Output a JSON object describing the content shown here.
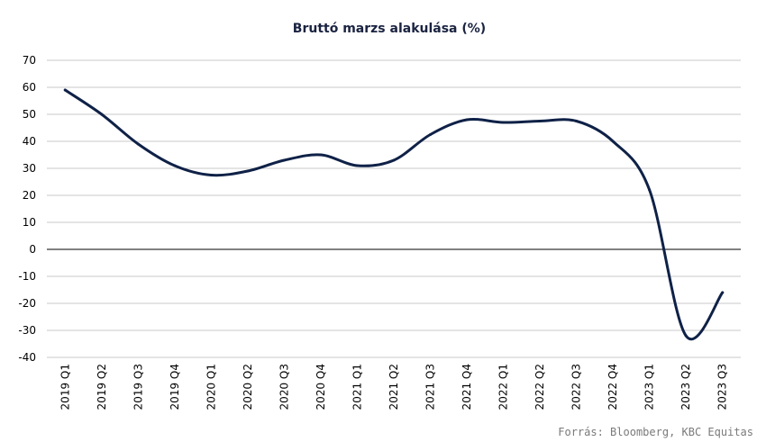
{
  "chart_data": {
    "type": "line",
    "title": "Bruttó marzs alakulása (%)",
    "xlabel": "",
    "ylabel": "",
    "categories": [
      "2019 Q1",
      "2019 Q2",
      "2019 Q3",
      "2019 Q4",
      "2020 Q1",
      "2020 Q2",
      "2020 Q3",
      "2020 Q4",
      "2021 Q1",
      "2021 Q2",
      "2021 Q3",
      "2021 Q4",
      "2022 Q1",
      "2022 Q2",
      "2022 Q3",
      "2022 Q4",
      "2023 Q1",
      "2023 Q2",
      "2023 Q3"
    ],
    "series": [
      {
        "values": [
          59,
          50,
          39,
          31,
          27.5,
          29,
          33,
          35,
          31,
          33,
          42.5,
          48,
          47,
          47.5,
          47.5,
          40,
          22,
          -32,
          -16
        ]
      }
    ],
    "ylim": [
      -40,
      70
    ],
    "yticks": [
      70,
      60,
      50,
      40,
      30,
      20,
      10,
      0,
      -10,
      -20,
      -30,
      -40
    ],
    "grid": true,
    "legend": "none",
    "line_color": "#0f2147",
    "grid_color": "#c8c8c8",
    "zero_line_color": "#000000"
  },
  "source": "Forrás: Bloomberg, KBC Equitas"
}
